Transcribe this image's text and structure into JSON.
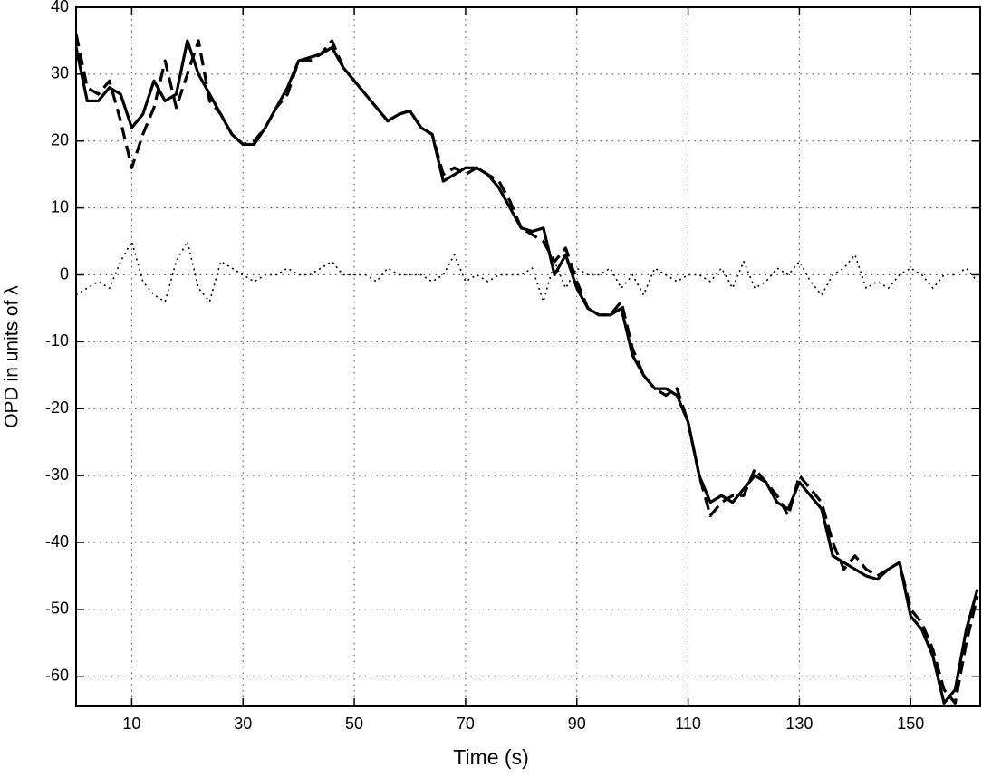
{
  "chart_data": {
    "type": "line",
    "x_label": "Time (s)",
    "y_label": "OPD in units of λ",
    "x": [
      0,
      2,
      4,
      6,
      8,
      10,
      12,
      14,
      16,
      18,
      20,
      22,
      24,
      26,
      28,
      30,
      32,
      34,
      36,
      38,
      40,
      42,
      44,
      46,
      48,
      50,
      52,
      54,
      56,
      58,
      60,
      62,
      64,
      66,
      68,
      70,
      72,
      74,
      76,
      78,
      80,
      82,
      84,
      86,
      88,
      90,
      92,
      94,
      96,
      98,
      100,
      102,
      104,
      106,
      108,
      110,
      112,
      114,
      116,
      118,
      120,
      122,
      124,
      126,
      128,
      130,
      132,
      134,
      136,
      138,
      140,
      142,
      144,
      146,
      148,
      150,
      152,
      154,
      156,
      158,
      160,
      162
    ],
    "series": [
      {
        "color": "#000000",
        "line_style": "solid",
        "values": [
          34,
          26,
          26,
          28,
          27,
          22,
          24,
          29,
          26,
          27,
          35,
          30,
          27,
          24,
          21,
          19.5,
          19.5,
          22,
          25,
          28,
          32,
          32.5,
          33,
          34,
          31,
          29,
          27,
          25,
          23,
          24,
          24.5,
          22,
          21,
          14,
          15,
          16,
          16,
          15,
          13,
          10,
          7,
          6.5,
          7,
          0,
          3,
          -2,
          -5,
          -6,
          -6,
          -5,
          -12,
          -15,
          -17,
          -17,
          -18,
          -22,
          -30,
          -34,
          -33,
          -34,
          -32,
          -30,
          -31,
          -34,
          -35,
          -31,
          -33,
          -35,
          -42,
          -43,
          -44,
          -45,
          -45.5,
          -44,
          -43,
          -51,
          -53,
          -57,
          -64,
          -62,
          -53,
          -47
        ]
      },
      {
        "color": "#000000",
        "line_style": "dashed",
        "values": [
          36,
          28,
          27,
          29,
          23,
          16,
          21,
          25,
          32,
          25,
          30,
          35,
          26,
          24,
          21,
          19.5,
          20,
          22,
          25,
          27,
          32,
          32,
          33,
          35,
          31,
          29,
          27,
          25,
          23,
          24,
          24.5,
          22,
          21,
          15,
          16,
          15,
          16,
          15,
          14,
          11,
          7,
          6,
          5,
          2,
          4,
          -1,
          -5,
          -6,
          -6,
          -4,
          -11,
          -15,
          -17,
          -18,
          -17,
          -22,
          -30,
          -36,
          -34,
          -33,
          -33,
          -29,
          -31,
          -33,
          -36,
          -30,
          -32,
          -34,
          -40,
          -44,
          -42,
          -44,
          -45,
          -44,
          -43,
          -50,
          -52,
          -56,
          -62,
          -64,
          -55,
          -48
        ]
      },
      {
        "color": "#000000",
        "line_style": "dotted",
        "values": [
          -3,
          -2,
          -1,
          -2,
          2,
          5,
          -1,
          -3,
          -4,
          2,
          5,
          -2,
          -4,
          2,
          1,
          0,
          -1,
          0,
          0,
          1,
          0,
          0,
          1,
          2,
          0,
          0,
          0,
          -1,
          1,
          0,
          0,
          0,
          -1,
          0,
          3,
          -1,
          0,
          -1,
          0,
          0,
          0,
          1,
          -4,
          2,
          -2,
          1,
          0,
          0,
          1,
          -2,
          0,
          -3,
          1,
          0,
          -1,
          0,
          0,
          -1,
          1,
          -2,
          2,
          -2,
          -1,
          1,
          0,
          2,
          -1,
          -3,
          0,
          1,
          3,
          -2,
          -1,
          -2,
          0,
          1,
          0,
          -2,
          0,
          0,
          1,
          -1
        ]
      }
    ],
    "xlim": [
      0,
      162.5
    ],
    "ylim": [
      -64.5,
      40
    ],
    "xticks": [
      10,
      30,
      50,
      70,
      90,
      110,
      130,
      150
    ],
    "yticks": [
      40,
      30,
      20,
      10,
      0,
      -10,
      -20,
      -30,
      -40,
      -50,
      -60
    ],
    "grid": true
  }
}
